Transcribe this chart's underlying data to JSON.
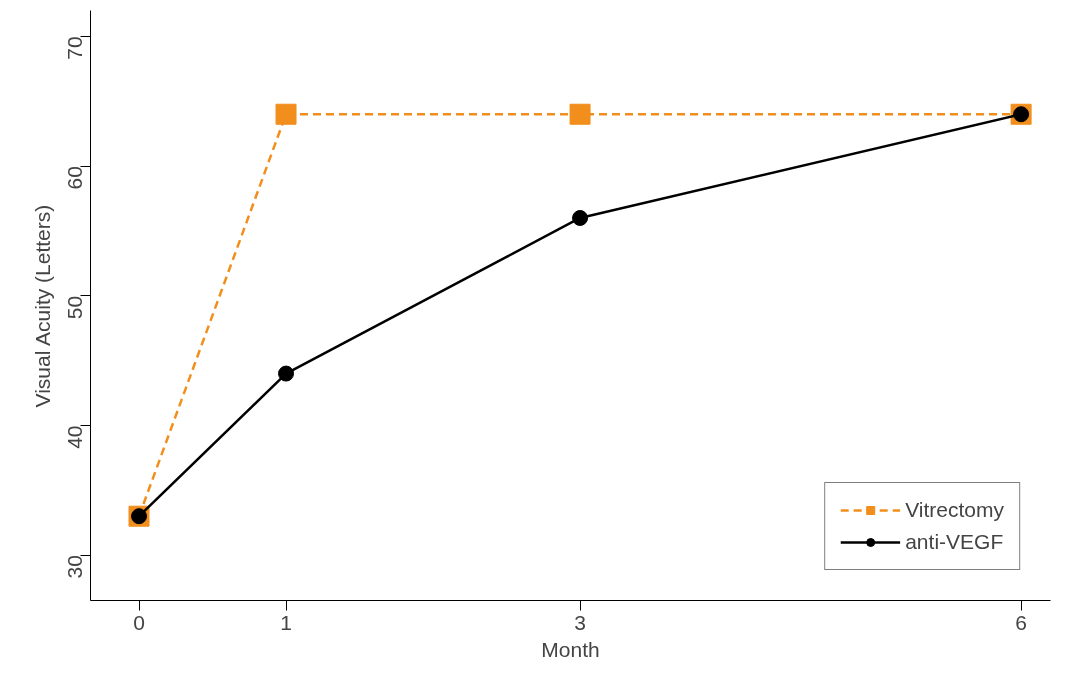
{
  "chart_data": {
    "type": "line",
    "xlabel": "Month",
    "ylabel": "Visual Acuity (Letters)",
    "x": [
      0,
      1,
      3,
      6
    ],
    "series": [
      {
        "name": "Vitrectomy",
        "color": "#f28e1c",
        "values": [
          33,
          64,
          64,
          64
        ],
        "marker": "square",
        "line_style": "dashed"
      },
      {
        "name": "anti-VEGF",
        "color": "#000000",
        "values": [
          33,
          44,
          56,
          64
        ],
        "marker": "circle",
        "line_style": "solid"
      }
    ],
    "xlim": [
      -0.33,
      6.2
    ],
    "ylim": [
      26.5,
      72
    ],
    "xticks": [
      0,
      1,
      3,
      6
    ],
    "yticks": [
      30,
      40,
      50,
      60,
      70
    ],
    "grid": false,
    "legend": "bottom right"
  }
}
